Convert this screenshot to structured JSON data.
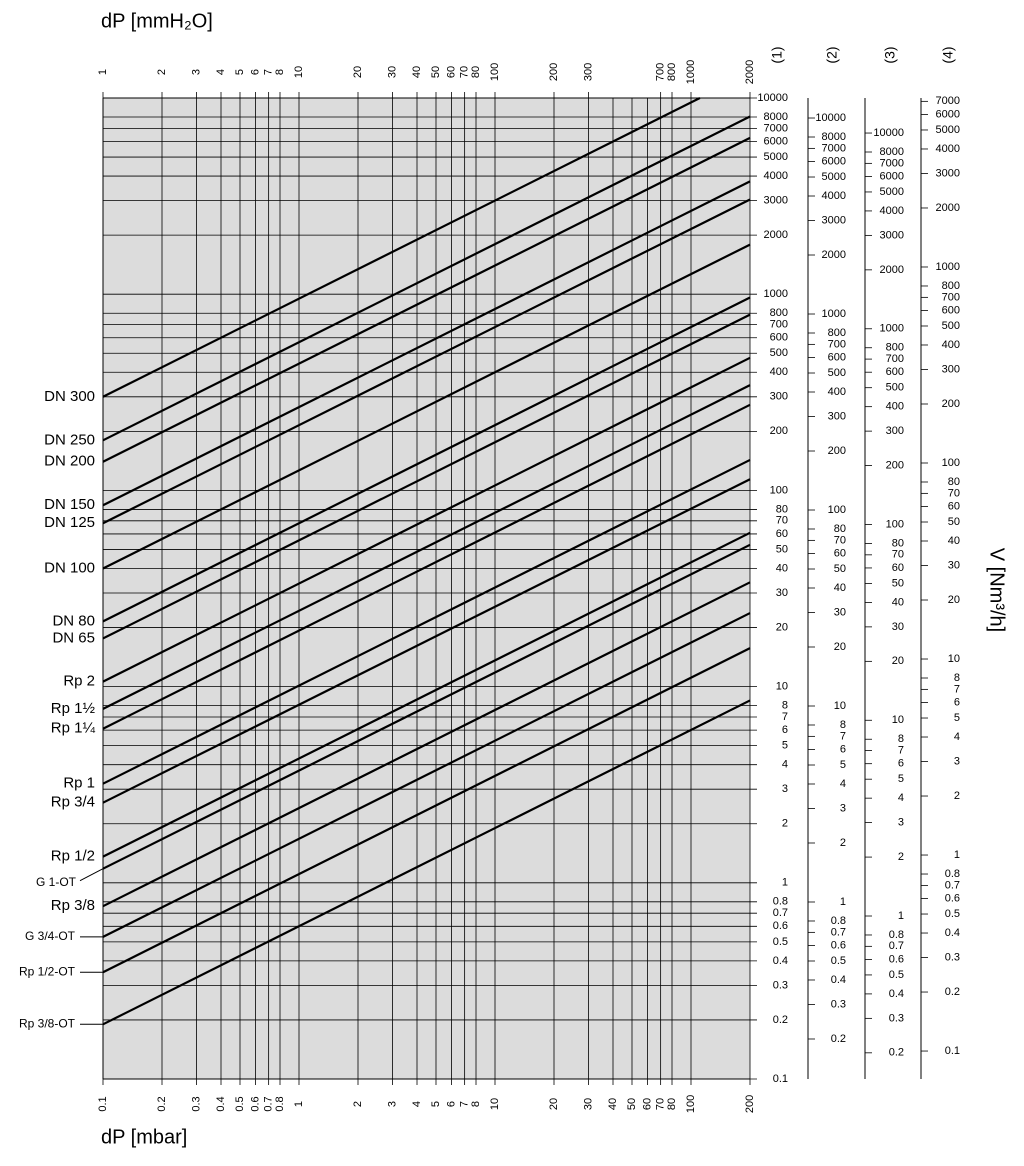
{
  "chart_data": {
    "type": "line",
    "x_label_top": "dP [mmH₂O]",
    "x_label": "dP [mbar]",
    "y_label": "V [Nm³/h]",
    "log_x": true,
    "log_y": true,
    "grid": true,
    "background": "#dcdcdc",
    "line_color": "#000000",
    "xlim": [
      0.1,
      200
    ],
    "xticks": [
      0.1,
      0.2,
      0.3,
      0.4,
      0.5,
      0.6,
      0.7,
      0.8,
      1,
      2,
      3,
      4,
      5,
      6,
      7,
      8,
      10,
      20,
      30,
      40,
      50,
      60,
      70,
      80,
      100,
      200
    ],
    "x2lim": [
      1,
      2000
    ],
    "x2ticks": [
      1,
      2,
      3,
      4,
      5,
      6,
      7,
      8,
      10,
      20,
      30,
      40,
      50,
      60,
      70,
      80,
      100,
      200,
      300,
      700,
      800,
      1000,
      2000
    ],
    "scales": [
      {
        "name": "(1)",
        "ylim": [
          0.1,
          10000
        ],
        "yticks": [
          10000,
          8000,
          7000,
          6000,
          5000,
          4000,
          3000,
          2000,
          1000,
          800,
          700,
          600,
          500,
          400,
          300,
          200,
          100,
          80,
          70,
          60,
          50,
          40,
          30,
          20,
          10,
          8,
          7,
          6,
          5,
          4,
          3,
          2,
          1,
          0.8,
          0.7,
          0.6,
          0.5,
          0.4,
          0.3,
          0.2,
          0.1
        ]
      },
      {
        "name": "(2)",
        "ylim": [
          0.125,
          12650
        ],
        "yticks": [
          10000,
          8000,
          7000,
          6000,
          5000,
          4000,
          3000,
          2000,
          1000,
          800,
          700,
          600,
          500,
          400,
          300,
          200,
          100,
          80,
          70,
          60,
          50,
          40,
          30,
          20,
          10,
          8,
          7,
          6,
          5,
          4,
          3,
          2,
          1,
          0.8,
          0.7,
          0.6,
          0.5,
          0.4,
          0.3,
          0.2
        ]
      },
      {
        "name": "(3)",
        "ylim": [
          0.147,
          15100
        ],
        "yticks": [
          10000,
          8000,
          7000,
          6000,
          5000,
          4000,
          3000,
          2000,
          1000,
          800,
          700,
          600,
          500,
          400,
          300,
          200,
          100,
          80,
          70,
          60,
          50,
          40,
          30,
          20,
          10,
          8,
          7,
          6,
          5,
          4,
          3,
          2,
          1,
          0.8,
          0.7,
          0.6,
          0.5,
          0.4,
          0.3,
          0.2
        ]
      },
      {
        "name": "(4)",
        "ylim": [
          0.072,
          7280
        ],
        "yticks": [
          7000,
          6000,
          5000,
          4000,
          3000,
          2000,
          1000,
          800,
          700,
          600,
          500,
          400,
          300,
          200,
          100,
          80,
          70,
          60,
          50,
          40,
          30,
          20,
          10,
          8,
          7,
          6,
          5,
          4,
          3,
          2,
          1,
          0.8,
          0.7,
          0.6,
          0.5,
          0.4,
          0.3,
          0.2,
          0.1
        ]
      }
    ],
    "series": [
      {
        "name": "DN 300",
        "x": [
          0.1,
          111
        ],
        "values": [
          300,
          10000
        ]
      },
      {
        "name": "DN 250",
        "x": [
          0.1,
          200
        ],
        "values": [
          180,
          8050
        ]
      },
      {
        "name": "DN 200",
        "x": [
          0.1,
          200
        ],
        "values": [
          140,
          6260
        ]
      },
      {
        "name": "DN 150",
        "x": [
          0.1,
          200
        ],
        "values": [
          84,
          3760
        ]
      },
      {
        "name": "DN 125",
        "x": [
          0.1,
          200
        ],
        "values": [
          68,
          3040
        ]
      },
      {
        "name": "DN 100",
        "x": [
          0.1,
          200
        ],
        "values": [
          40,
          1790
        ]
      },
      {
        "name": "DN 80",
        "x": [
          0.1,
          200
        ],
        "values": [
          21.5,
          962
        ]
      },
      {
        "name": "DN 65",
        "x": [
          0.1,
          200
        ],
        "values": [
          17.6,
          787
        ]
      },
      {
        "name": "Rp 2",
        "x": [
          0.1,
          200
        ],
        "values": [
          10.6,
          474
        ]
      },
      {
        "name": "Rp 1½",
        "x": [
          0.1,
          200
        ],
        "values": [
          7.7,
          344
        ]
      },
      {
        "name": "Rp 1¼",
        "x": [
          0.1,
          200
        ],
        "values": [
          6.1,
          273
        ]
      },
      {
        "name": "Rp 1",
        "x": [
          0.1,
          200
        ],
        "values": [
          3.2,
          143
        ]
      },
      {
        "name": "Rp 3/4",
        "x": [
          0.1,
          200
        ],
        "values": [
          2.56,
          114
        ]
      },
      {
        "name": "Rp 1/2",
        "x": [
          0.1,
          200
        ],
        "values": [
          1.36,
          60.8
        ]
      },
      {
        "name": "G 1-OT",
        "x": [
          0.1,
          200
        ],
        "values": [
          1.18,
          52.8
        ]
      },
      {
        "name": "Rp 3/8",
        "x": [
          0.1,
          200
        ],
        "values": [
          0.76,
          34
        ]
      },
      {
        "name": "G 3/4-OT",
        "x": [
          0.1,
          200
        ],
        "values": [
          0.53,
          23.7
        ]
      },
      {
        "name": "Rp 1/2-OT",
        "x": [
          0.1,
          200
        ],
        "values": [
          0.35,
          15.7
        ]
      },
      {
        "name": "Rp 3/8-OT",
        "x": [
          0.1,
          200
        ],
        "values": [
          0.19,
          8.5
        ]
      }
    ]
  }
}
